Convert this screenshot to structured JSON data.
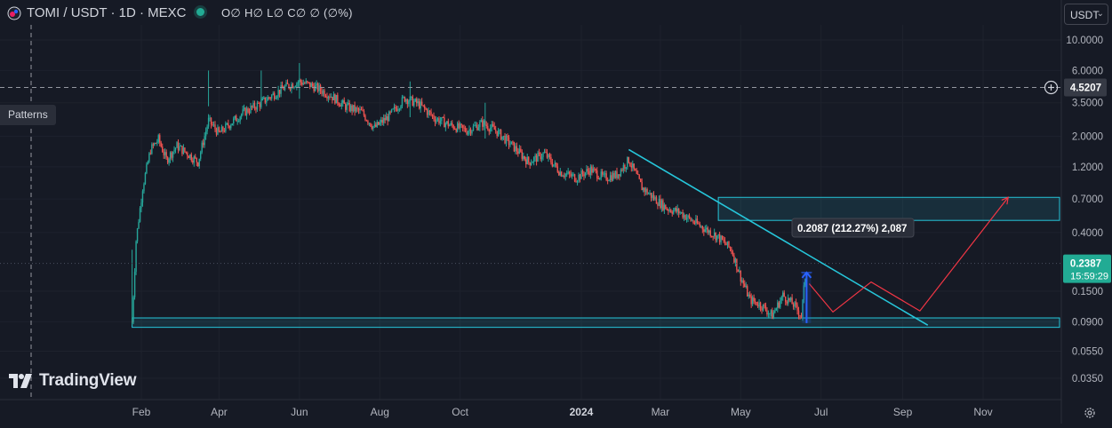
{
  "header": {
    "symbol_title": "TOMI / USDT · 1D · MEXC",
    "ohlc": "O∅ H∅ L∅ C∅ ∅ (∅%)",
    "currency": "USDT"
  },
  "toolbar": {
    "patterns_label": "Patterns"
  },
  "branding": {
    "logo_text": "TradingView"
  },
  "icons": {
    "symbol": "token-logo-icon",
    "settings": "gear-icon",
    "add": "plus-circle-icon",
    "dropdown": "chevron-down-icon"
  },
  "colors": {
    "background": "#161a25",
    "up": "#26a69a",
    "down": "#ef5350",
    "drawing": "#26c6da",
    "measure": "#2962ff",
    "projection": "#f23645"
  },
  "chart_data": {
    "type": "candlestick",
    "title": "TOMI / USDT · 1D · MEXC",
    "y_scale": "log",
    "ylim": [
      0.025,
      14
    ],
    "y_ticks": [
      "10.0000",
      "6.0000",
      "3.5000",
      "2.0000",
      "1.2000",
      "0.7000",
      "0.4000",
      "0.1500",
      "0.0900",
      "0.0550",
      "0.0350"
    ],
    "x_ticks": [
      "Feb",
      "Apr",
      "Jun",
      "Aug",
      "Oct",
      "2024",
      "Mar",
      "May",
      "Jul",
      "Sep",
      "Nov"
    ],
    "last_price": {
      "value": "0.2387",
      "countdown": "15:59:29"
    },
    "crosshair_price": "4.5207",
    "measure_label": "0.2087 (212.27%) 2,087",
    "price_path": [
      [
        "2023-01-25",
        0.09
      ],
      [
        "2023-01-28",
        0.35
      ],
      [
        "2023-02-02",
        0.85
      ],
      [
        "2023-02-08",
        1.6
      ],
      [
        "2023-02-14",
        1.9
      ],
      [
        "2023-02-20",
        1.35
      ],
      [
        "2023-02-28",
        1.7
      ],
      [
        "2023-03-08",
        1.5
      ],
      [
        "2023-03-16",
        1.3
      ],
      [
        "2023-03-24",
        2.6
      ],
      [
        "2023-04-01",
        2.1
      ],
      [
        "2023-04-10",
        2.5
      ],
      [
        "2023-04-20",
        3.0
      ],
      [
        "2023-05-01",
        3.4
      ],
      [
        "2023-05-12",
        4.0
      ],
      [
        "2023-05-22",
        4.6
      ],
      [
        "2023-06-01",
        5.0
      ],
      [
        "2023-06-12",
        4.6
      ],
      [
        "2023-06-24",
        4.0
      ],
      [
        "2023-07-06",
        3.3
      ],
      [
        "2023-07-18",
        3.0
      ],
      [
        "2023-07-28",
        2.3
      ],
      [
        "2023-08-08",
        2.8
      ],
      [
        "2023-08-20",
        3.8
      ],
      [
        "2023-08-31",
        3.4
      ],
      [
        "2023-09-12",
        2.7
      ],
      [
        "2023-09-24",
        2.4
      ],
      [
        "2023-10-06",
        2.2
      ],
      [
        "2023-10-18",
        2.5
      ],
      [
        "2023-10-28",
        2.2
      ],
      [
        "2023-11-10",
        1.7
      ],
      [
        "2023-11-22",
        1.3
      ],
      [
        "2023-12-04",
        1.5
      ],
      [
        "2023-12-16",
        1.1
      ],
      [
        "2023-12-28",
        1.0
      ],
      [
        "2024-01-08",
        1.15
      ],
      [
        "2024-01-18",
        1.0
      ],
      [
        "2024-01-28",
        1.05
      ],
      [
        "2024-02-06",
        1.35
      ],
      [
        "2024-02-16",
        0.85
      ],
      [
        "2024-02-26",
        0.7
      ],
      [
        "2024-03-06",
        0.6
      ],
      [
        "2024-03-16",
        0.56
      ],
      [
        "2024-03-26",
        0.48
      ],
      [
        "2024-04-05",
        0.42
      ],
      [
        "2024-04-14",
        0.37
      ],
      [
        "2024-04-24",
        0.3
      ],
      [
        "2024-05-01",
        0.19
      ],
      [
        "2024-05-08",
        0.13
      ],
      [
        "2024-05-16",
        0.12
      ],
      [
        "2024-05-25",
        0.1
      ],
      [
        "2024-06-02",
        0.14
      ],
      [
        "2024-06-10",
        0.12
      ],
      [
        "2024-06-16",
        0.1
      ],
      [
        "2024-06-20",
        0.2387
      ]
    ],
    "support_zone": [
      0.082,
      0.096
    ],
    "resistance_zone": [
      0.49,
      0.72
    ],
    "trendline": [
      [
        "2024-02-06",
        1.6
      ],
      [
        "2024-09-20",
        0.085
      ]
    ],
    "projection_path": [
      [
        "2024-06-22",
        0.17
      ],
      [
        "2024-07-10",
        0.106
      ],
      [
        "2024-08-08",
        0.175
      ],
      [
        "2024-09-14",
        0.108
      ],
      [
        "2024-11-20",
        0.72
      ]
    ]
  }
}
